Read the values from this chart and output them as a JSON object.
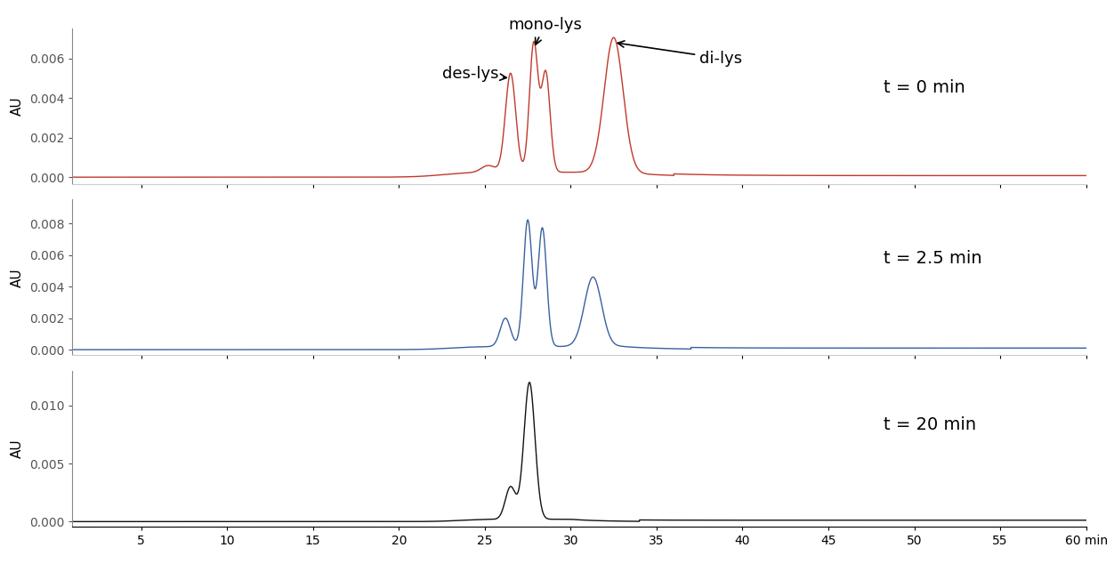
{
  "xlabel": "min",
  "ylabel": "AU",
  "xlim": [
    1,
    60
  ],
  "xticks": [
    5,
    10,
    15,
    20,
    25,
    30,
    35,
    40,
    45,
    50,
    55,
    60
  ],
  "panel1": {
    "color": "#c0392b",
    "label": "t = 0 min",
    "ylim": [
      -0.00035,
      0.0075
    ],
    "yticks": [
      0.0,
      0.002,
      0.004,
      0.006
    ]
  },
  "panel2": {
    "color": "#3a5fa0",
    "label": "t = 2.5 min",
    "ylim": [
      -0.00035,
      0.0095
    ],
    "yticks": [
      0.0,
      0.002,
      0.004,
      0.006,
      0.008
    ]
  },
  "panel3": {
    "color": "#111111",
    "label": "t = 20 min",
    "ylim": [
      -0.0004,
      0.013
    ],
    "yticks": [
      0.0,
      0.005,
      0.01
    ]
  },
  "background_color": "#ffffff",
  "annotation_fontsize": 13,
  "label_fontsize": 11,
  "tick_fontsize": 10,
  "time_label_fontsize": 14
}
